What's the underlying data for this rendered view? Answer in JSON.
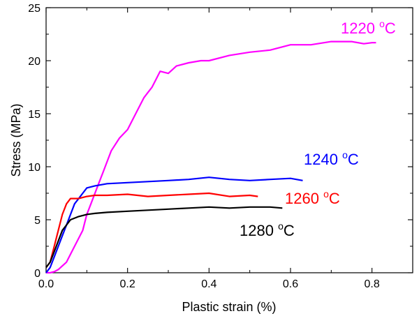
{
  "chart_data": {
    "type": "line",
    "title": "",
    "xlabel": "Plastic strain (%)",
    "ylabel": "Stress (MPa)",
    "xlim": [
      0.0,
      0.9
    ],
    "ylim": [
      0,
      25
    ],
    "x_ticks": [
      0.0,
      0.2,
      0.4,
      0.6,
      0.8
    ],
    "x_tick_labels": [
      "0.0",
      "0.2",
      "0.4",
      "0.6",
      "0.8"
    ],
    "y_ticks": [
      0,
      5,
      10,
      15,
      20,
      25
    ],
    "y_tick_labels": [
      "0",
      "5",
      "10",
      "15",
      "20",
      "25"
    ],
    "grid": false,
    "legend": "none",
    "series": [
      {
        "name": "1220 °C",
        "label_text": "1220 ",
        "label_unit": "C",
        "label_sup": "o",
        "color": "#ff00ff",
        "x": [
          0.0,
          0.01,
          0.02,
          0.03,
          0.05,
          0.07,
          0.09,
          0.1,
          0.11,
          0.12,
          0.13,
          0.14,
          0.15,
          0.16,
          0.18,
          0.2,
          0.22,
          0.24,
          0.25,
          0.26,
          0.28,
          0.3,
          0.32,
          0.35,
          0.38,
          0.4,
          0.45,
          0.5,
          0.55,
          0.6,
          0.65,
          0.7,
          0.75,
          0.78,
          0.8,
          0.81
        ],
        "y": [
          0.0,
          0.0,
          0.1,
          0.3,
          1.0,
          2.5,
          4.0,
          5.5,
          6.5,
          7.5,
          8.5,
          9.5,
          10.5,
          11.5,
          12.7,
          13.5,
          15.0,
          16.5,
          17.0,
          17.5,
          19.0,
          18.8,
          19.5,
          19.8,
          20.0,
          20.0,
          20.5,
          20.8,
          21.0,
          21.5,
          21.5,
          21.8,
          21.8,
          21.6,
          21.7,
          21.7
        ]
      },
      {
        "name": "1240 °C",
        "label_text": "1240 ",
        "label_unit": "C",
        "label_sup": "o",
        "color": "#0000ff",
        "x": [
          0.0,
          0.01,
          0.02,
          0.03,
          0.04,
          0.05,
          0.06,
          0.07,
          0.08,
          0.09,
          0.1,
          0.12,
          0.15,
          0.2,
          0.25,
          0.3,
          0.35,
          0.4,
          0.45,
          0.5,
          0.55,
          0.6,
          0.63
        ],
        "y": [
          0.0,
          0.5,
          1.5,
          2.5,
          3.5,
          4.5,
          5.5,
          6.5,
          7.0,
          7.5,
          8.0,
          8.2,
          8.4,
          8.5,
          8.6,
          8.7,
          8.8,
          9.0,
          8.8,
          8.7,
          8.8,
          8.9,
          8.7
        ]
      },
      {
        "name": "1260 °C",
        "label_text": "1260 ",
        "label_unit": "C",
        "label_sup": "o",
        "color": "#ff0000",
        "x": [
          0.0,
          0.01,
          0.02,
          0.03,
          0.04,
          0.05,
          0.06,
          0.08,
          0.1,
          0.12,
          0.15,
          0.2,
          0.25,
          0.3,
          0.35,
          0.4,
          0.45,
          0.5,
          0.52
        ],
        "y": [
          0.5,
          1.0,
          2.5,
          4.0,
          5.5,
          6.5,
          7.0,
          7.0,
          7.2,
          7.3,
          7.3,
          7.4,
          7.2,
          7.3,
          7.4,
          7.5,
          7.2,
          7.3,
          7.2
        ]
      },
      {
        "name": "1280 °C",
        "label_text": "1280 ",
        "label_unit": "C",
        "label_sup": "o",
        "color": "#000000",
        "x": [
          0.0,
          0.01,
          0.02,
          0.03,
          0.04,
          0.05,
          0.06,
          0.08,
          0.1,
          0.12,
          0.15,
          0.2,
          0.25,
          0.3,
          0.35,
          0.4,
          0.45,
          0.5,
          0.55,
          0.58
        ],
        "y": [
          0.5,
          1.0,
          2.0,
          3.0,
          4.0,
          4.5,
          5.0,
          5.3,
          5.5,
          5.6,
          5.7,
          5.8,
          5.9,
          6.0,
          6.1,
          6.2,
          6.1,
          6.2,
          6.2,
          6.1
        ]
      }
    ]
  }
}
